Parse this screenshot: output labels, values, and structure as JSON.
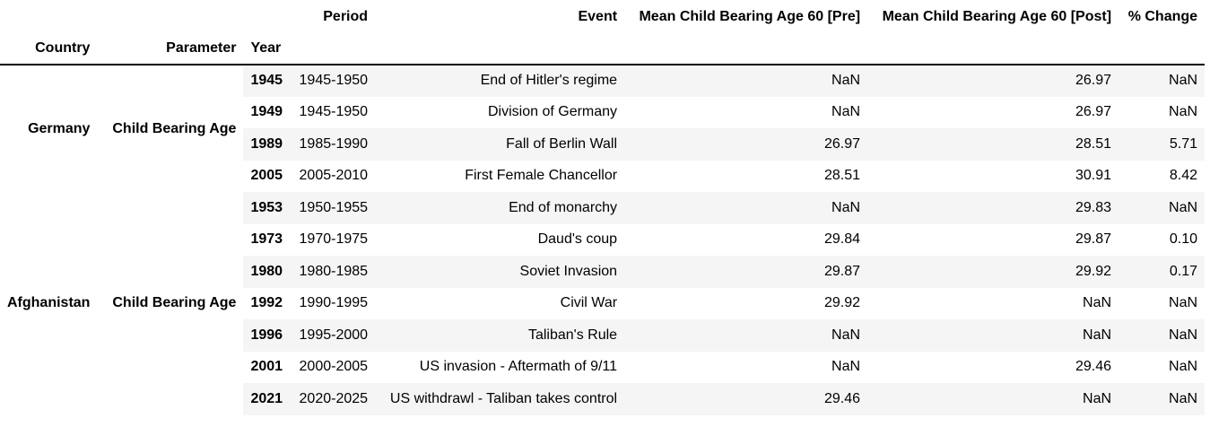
{
  "index_names": [
    "Country",
    "Parameter",
    "Year"
  ],
  "columns": [
    "Period",
    "Event",
    "Mean Child Bearing Age 60 [Pre]",
    "Mean Child Bearing Age 60 [Post]",
    "% Change"
  ],
  "groups": [
    {
      "country": "Germany",
      "parameter": "Child Bearing Age",
      "rows": [
        {
          "year": "1945",
          "period": "1945-1950",
          "event": "End of Hitler's regime",
          "pre": "NaN",
          "post": "26.97",
          "change": "NaN"
        },
        {
          "year": "1949",
          "period": "1945-1950",
          "event": "Division of Germany",
          "pre": "NaN",
          "post": "26.97",
          "change": "NaN"
        },
        {
          "year": "1989",
          "period": "1985-1990",
          "event": "Fall of Berlin Wall",
          "pre": "26.97",
          "post": "28.51",
          "change": "5.71"
        },
        {
          "year": "2005",
          "period": "2005-2010",
          "event": "First Female Chancellor",
          "pre": "28.51",
          "post": "30.91",
          "change": "8.42"
        }
      ]
    },
    {
      "country": "Afghanistan",
      "parameter": "Child Bearing Age",
      "rows": [
        {
          "year": "1953",
          "period": "1950-1955",
          "event": "End of monarchy",
          "pre": "NaN",
          "post": "29.83",
          "change": "NaN"
        },
        {
          "year": "1973",
          "period": "1970-1975",
          "event": "Daud's coup",
          "pre": "29.84",
          "post": "29.87",
          "change": "0.10"
        },
        {
          "year": "1980",
          "period": "1980-1985",
          "event": "Soviet Invasion",
          "pre": "29.87",
          "post": "29.92",
          "change": "0.17"
        },
        {
          "year": "1992",
          "period": "1990-1995",
          "event": "Civil War",
          "pre": "29.92",
          "post": "NaN",
          "change": "NaN"
        },
        {
          "year": "1996",
          "period": "1995-2000",
          "event": "Taliban's Rule",
          "pre": "NaN",
          "post": "NaN",
          "change": "NaN"
        },
        {
          "year": "2001",
          "period": "2000-2005",
          "event": "US invasion - Aftermath of 9/11",
          "pre": "NaN",
          "post": "29.46",
          "change": "NaN"
        },
        {
          "year": "2021",
          "period": "2020-2025",
          "event": "US withdrawl - Taliban takes control",
          "pre": "29.46",
          "post": "NaN",
          "change": "NaN"
        }
      ]
    }
  ]
}
